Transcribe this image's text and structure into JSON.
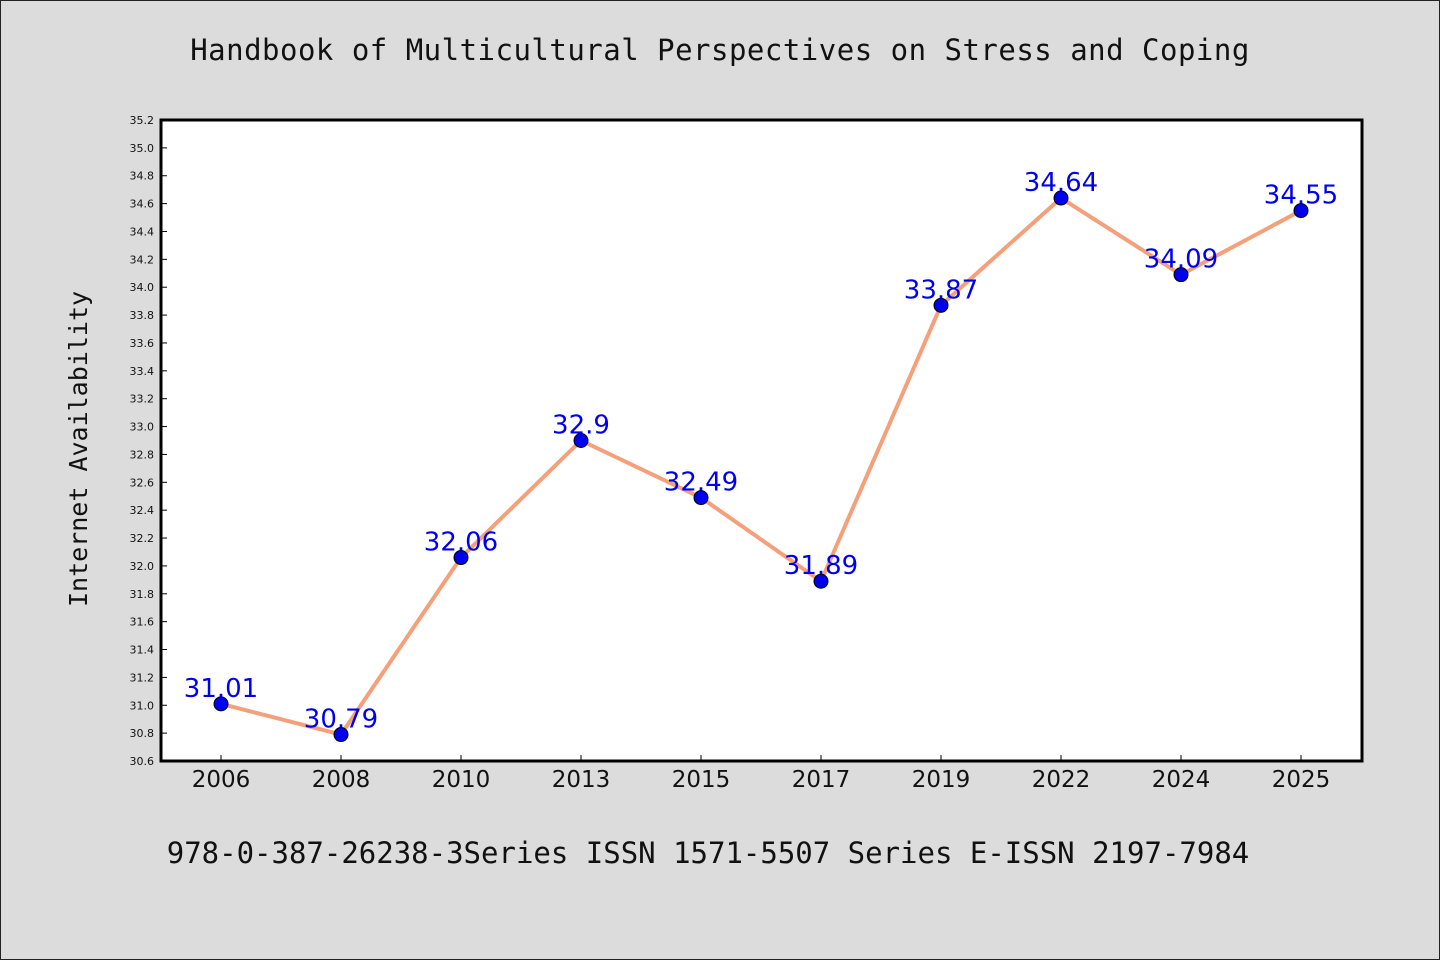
{
  "chart_data": {
    "type": "line",
    "title": "Handbook of Multicultural Perspectives on Stress and Coping",
    "footer": "978-0-387-26238-3Series ISSN 1571-5507 Series E-ISSN 2197-7984",
    "xlabel": "",
    "ylabel": "Internet Availability",
    "categories": [
      "2006",
      "2008",
      "2010",
      "2013",
      "2015",
      "2017",
      "2019",
      "2022",
      "2024",
      "2025"
    ],
    "series": [
      {
        "values": [
          31.01,
          30.79,
          32.06,
          32.9,
          32.49,
          31.89,
          33.87,
          34.64,
          34.09,
          34.55
        ],
        "data_labels": [
          "31.01",
          "30.79",
          "32.06",
          "32.9",
          "32.49",
          "31.89",
          "33.87",
          "34.64",
          "34.09",
          "34.55"
        ]
      }
    ],
    "ylim": [
      30.6,
      35.2
    ],
    "yticks": [
      "30.6",
      "30.8",
      "31.0",
      "31.2",
      "31.4",
      "31.6",
      "31.8",
      "32.0",
      "32.2",
      "32.4",
      "32.6",
      "32.8",
      "33.0",
      "33.2",
      "33.4",
      "33.6",
      "33.8",
      "34.0",
      "34.2",
      "34.4",
      "34.6",
      "34.8",
      "35.0",
      "35.2"
    ],
    "grid": false,
    "legend": "none",
    "colors": {
      "line": "#f4a07a",
      "marker": "#0000ee",
      "label": "#0000ee",
      "background": "#dcdcdc",
      "plot_background": "#ffffff"
    }
  }
}
